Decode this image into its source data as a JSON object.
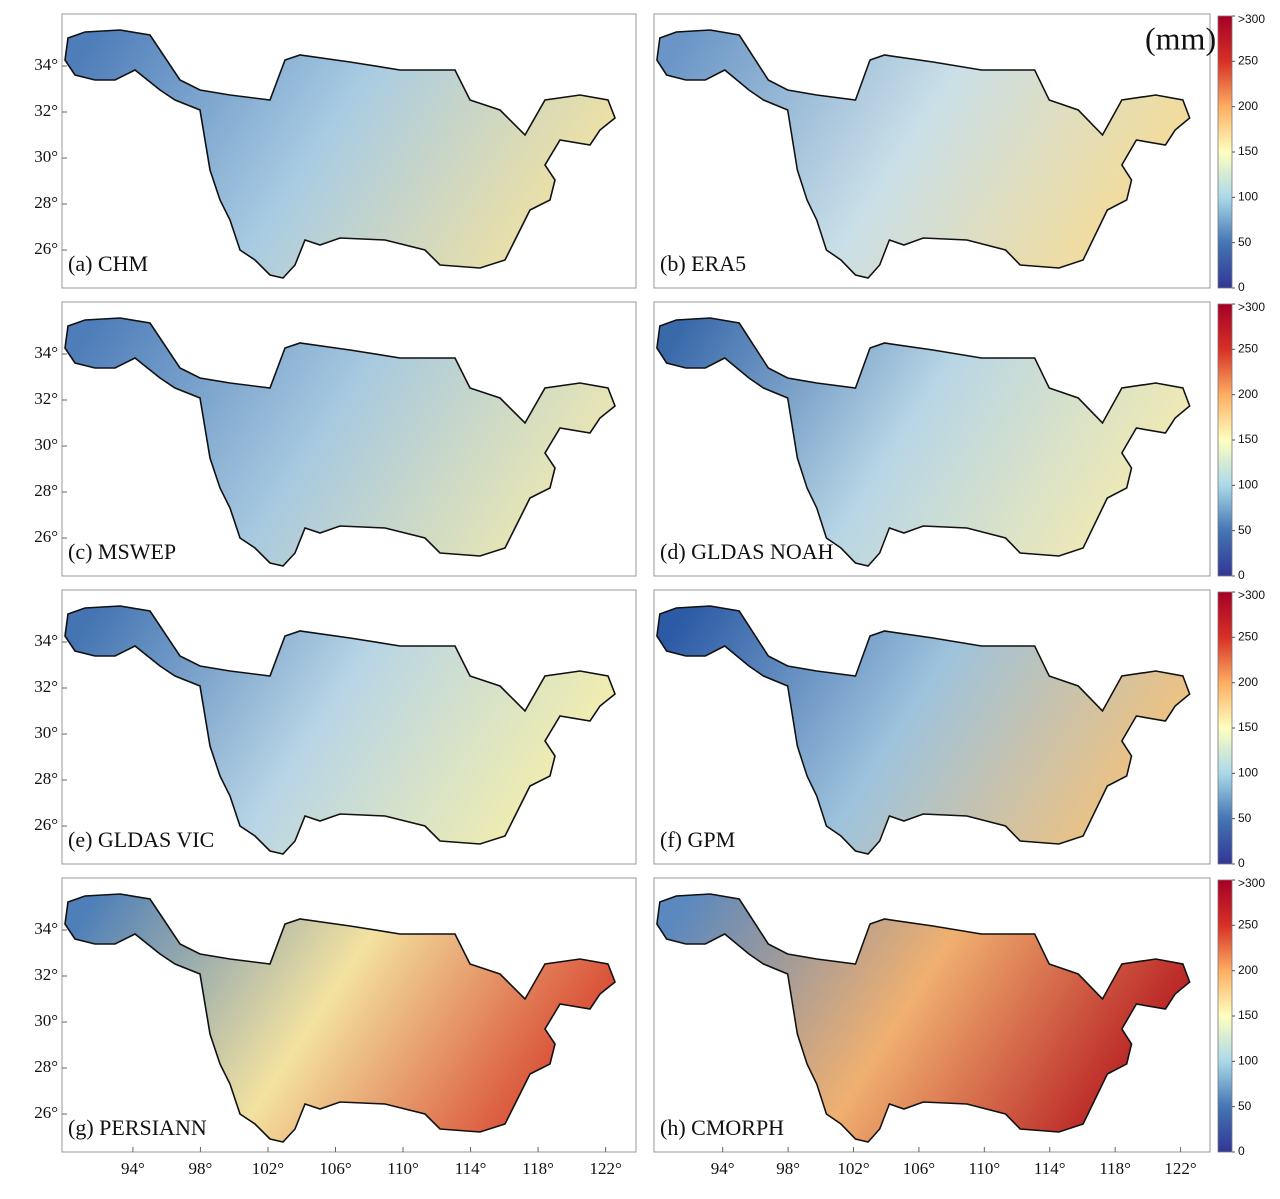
{
  "unit": "(mm)",
  "xlim": [
    89.8,
    123.8
  ],
  "ylim": [
    24.35,
    36.26
  ],
  "lat_ticks": [
    {
      "value": 26,
      "label": "26°"
    },
    {
      "value": 28,
      "label": "28°"
    },
    {
      "value": 30,
      "label": "30°"
    },
    {
      "value": 32,
      "label": "32°"
    },
    {
      "value": 34,
      "label": "34°"
    }
  ],
  "lon_ticks": [
    {
      "value": 94,
      "label": "94°"
    },
    {
      "value": 98,
      "label": "98°"
    },
    {
      "value": 102,
      "label": "102°"
    },
    {
      "value": 106,
      "label": "106°"
    },
    {
      "value": 110,
      "label": "110°"
    },
    {
      "value": 114,
      "label": "114°"
    },
    {
      "value": 118,
      "label": "118°"
    },
    {
      "value": 122,
      "label": "122°"
    }
  ],
  "colorbar": {
    "range": [
      0,
      300
    ],
    "ticks": [
      0,
      50,
      100,
      150,
      200,
      250,
      {
        "value": 300,
        "label": ">300"
      }
    ],
    "colors": [
      "#313695",
      "#4575b4",
      "#abd9e9",
      "#ffffbf",
      "#fdae61",
      "#d73027",
      "#a50026"
    ]
  },
  "panels": [
    {
      "label": "(a) CHM",
      "colors": [
        "#4f7db9",
        "#a9cce3",
        "#f3e2a0"
      ]
    },
    {
      "label": "(b) ERA5",
      "colors": [
        "#6a95c6",
        "#c9dfe8",
        "#f7dc94"
      ]
    },
    {
      "label": "(c) MSWEP",
      "colors": [
        "#4f7db9",
        "#a7c9e0",
        "#eee8b0"
      ]
    },
    {
      "label": "(d) GLDAS NOAH",
      "colors": [
        "#3a69aa",
        "#b8d6e6",
        "#f4ebb0"
      ]
    },
    {
      "label": "(e) GLDAS VIC",
      "colors": [
        "#4474b2",
        "#b8d5e6",
        "#f6efaa"
      ]
    },
    {
      "label": "(f) GPM",
      "colors": [
        "#2c5aa5",
        "#9ec3dd",
        "#f4c27a"
      ]
    },
    {
      "label": "(g) PERSIANN",
      "colors": [
        "#4f7fb8",
        "#f3e2a0",
        "#d7432e"
      ]
    },
    {
      "label": "(h) CMORPH",
      "colors": [
        "#5a88bf",
        "#f0b070",
        "#b5191f"
      ]
    }
  ]
}
